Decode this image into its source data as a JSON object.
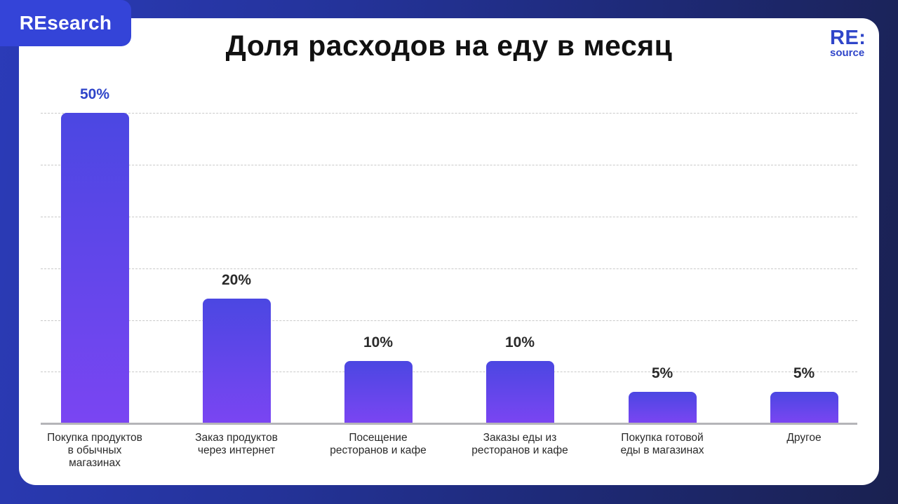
{
  "badge": {
    "label": "REsearch"
  },
  "title": "Доля расходов на еду в месяц",
  "logo": {
    "top": "RE:",
    "bottom": "source"
  },
  "colors": {
    "accent": "#2f45c9",
    "bar_top": "#4b47e2",
    "bar_bottom": "#7a45f2",
    "background": "#24339a"
  },
  "chart_data": {
    "type": "bar",
    "title": "Доля расходов на еду в месяц",
    "xlabel": "",
    "ylabel": "",
    "ylim": [
      0,
      50
    ],
    "grid": true,
    "legend": null,
    "categories": [
      "Покупка продуктов в обычных магазинах",
      "Заказ продуктов через интернет",
      "Посещение ресторанов и кафе",
      "Заказы еды из ресторанов и кафе",
      "Покупка готовой еды в магазинах",
      "Другое"
    ],
    "values": [
      50,
      20,
      10,
      10,
      5,
      5
    ],
    "value_labels": [
      "50%",
      "20%",
      "10%",
      "10%",
      "5%",
      "5%"
    ]
  },
  "category_labels": [
    "Покупка продуктов\nв обычных\nмагазинах",
    "Заказ продуктов\nчерез интернет",
    "Посещение\nресторанов и кафе",
    "Заказы еды из\nресторанов и кафе",
    "Покупка готовой\nеды в магазинах",
    "Другое"
  ]
}
